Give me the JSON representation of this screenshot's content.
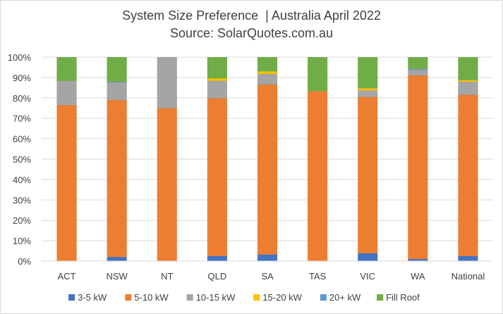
{
  "chart_data": {
    "type": "bar",
    "stacked": true,
    "percent_stacked": true,
    "title": "System Size Preference  | Australia April 2022",
    "subtitle": "Source: SolarQuotes.com.au",
    "xlabel": "",
    "ylabel": "",
    "ylim": [
      0,
      100
    ],
    "yticks": [
      "0%",
      "10%",
      "20%",
      "30%",
      "40%",
      "50%",
      "60%",
      "70%",
      "80%",
      "90%",
      "100%"
    ],
    "grid": true,
    "legend_position": "bottom",
    "categories": [
      "ACT",
      "NSW",
      "NT",
      "QLD",
      "SA",
      "TAS",
      "VIC",
      "WA",
      "National"
    ],
    "series": [
      {
        "name": "3-5 kW",
        "color": "#4472c4",
        "values": [
          0,
          2,
          0,
          2.5,
          3.2,
          0,
          3.8,
          1,
          2.5
        ]
      },
      {
        "name": "5-10 kW",
        "color": "#ed7d31",
        "values": [
          76.5,
          77,
          75,
          77.3,
          83.3,
          83.3,
          76.7,
          90,
          79
        ]
      },
      {
        "name": "10-15 kW",
        "color": "#a5a5a5",
        "values": [
          11.8,
          8.6,
          25,
          8.6,
          5.2,
          0,
          3.2,
          2.8,
          6.4
        ]
      },
      {
        "name": "15-20 kW",
        "color": "#ffc000",
        "values": [
          0,
          0,
          0,
          1.2,
          1.3,
          0,
          1,
          0,
          0.8
        ]
      },
      {
        "name": "20+ kW",
        "color": "#5b9bd5",
        "values": [
          0,
          0.3,
          0,
          0,
          0,
          0,
          0,
          0.4,
          0
        ]
      },
      {
        "name": "Fill Roof",
        "color": "#70ad47",
        "values": [
          11.7,
          12.1,
          0,
          10.4,
          7,
          16.7,
          15.3,
          5.8,
          11.3
        ]
      }
    ]
  }
}
